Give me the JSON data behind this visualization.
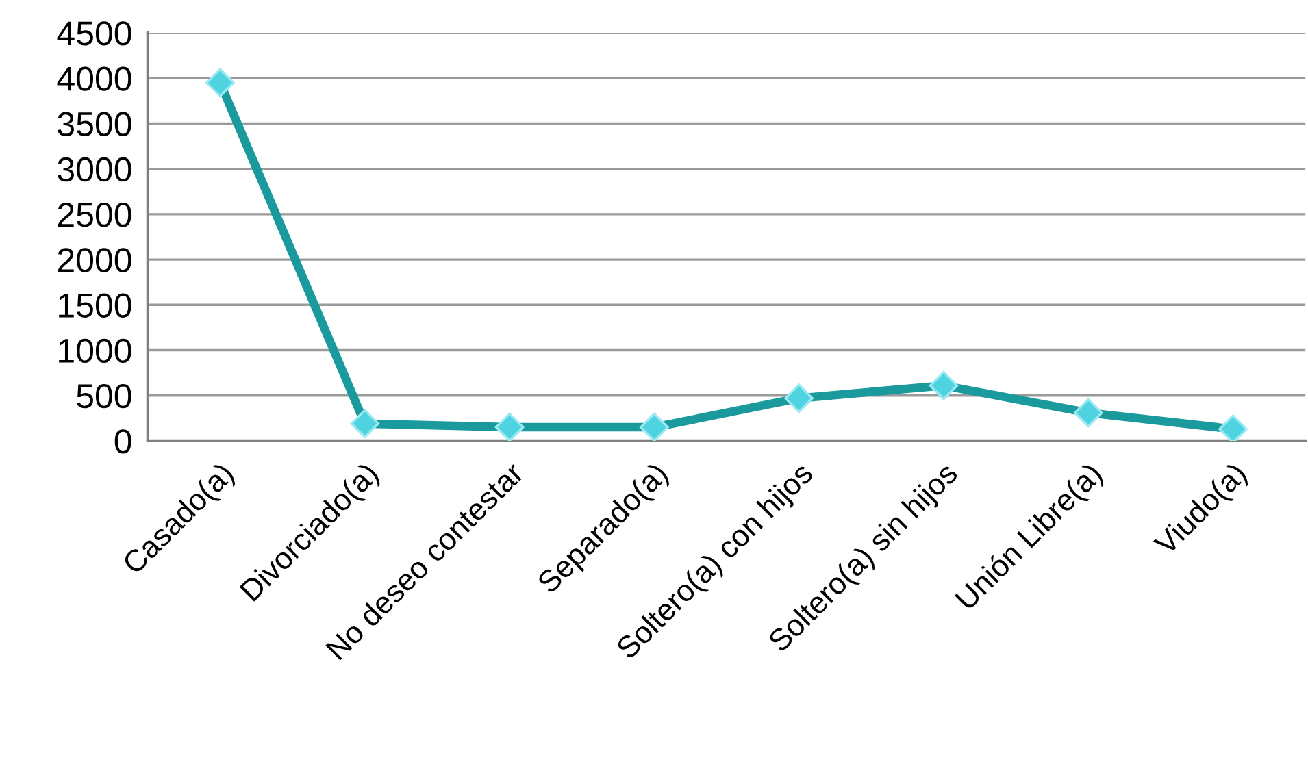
{
  "chart_data": {
    "type": "line",
    "categories": [
      "Casado(a)",
      "Divorciado(a)",
      "No deseo contestar",
      "Separado(a)",
      "Soltero(a) con hijos",
      "Soltero(a) sin hijos",
      "Unión Libre(a)",
      "Viudo(a)"
    ],
    "series": [
      {
        "color": "#1a9a9c",
        "values": [
          3950,
          190,
          150,
          150,
          470,
          610,
          310,
          130
        ]
      }
    ],
    "ylim": [
      0,
      4500
    ],
    "yticks": [
      0,
      500,
      1000,
      1500,
      2000,
      2500,
      3000,
      3500,
      4000,
      4500
    ],
    "grid": "y",
    "marker": "diamond",
    "line_style": "solid"
  }
}
